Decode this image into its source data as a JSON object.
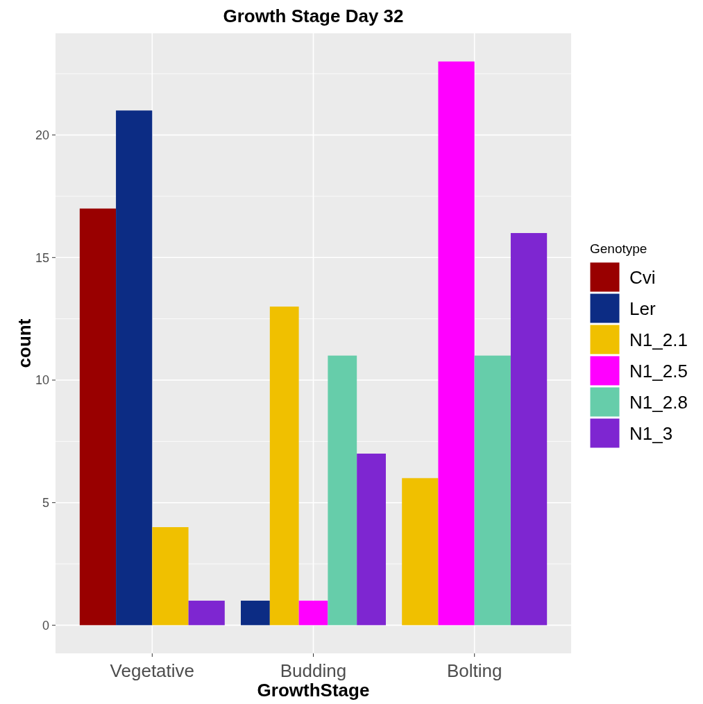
{
  "chart_data": {
    "type": "bar",
    "title": "Growth Stage Day 32",
    "xlabel": "GrowthStage",
    "ylabel": "count",
    "legend_title": "Genotype",
    "categories": [
      "Vegetative",
      "Budding",
      "Bolting"
    ],
    "series": [
      {
        "name": "Cvi",
        "color": "#990000",
        "values": [
          17,
          null,
          null
        ]
      },
      {
        "name": "Ler",
        "color": "#0c2c84",
        "values": [
          21,
          1,
          null
        ]
      },
      {
        "name": "N1_2.1",
        "color": "#f0c000",
        "values": [
          4,
          13,
          6
        ]
      },
      {
        "name": "N1_2.5",
        "color": "#ff00ff",
        "values": [
          null,
          1,
          23
        ]
      },
      {
        "name": "N1_2.8",
        "color": "#66cdaa",
        "values": [
          null,
          11,
          11
        ]
      },
      {
        "name": "N1_3",
        "color": "#7e26d1",
        "values": [
          1,
          7,
          16
        ]
      }
    ],
    "ylim": [
      -1.15,
      24.15
    ],
    "yticks": [
      0,
      5,
      10,
      15,
      20
    ],
    "grid": true,
    "legend": "right"
  }
}
